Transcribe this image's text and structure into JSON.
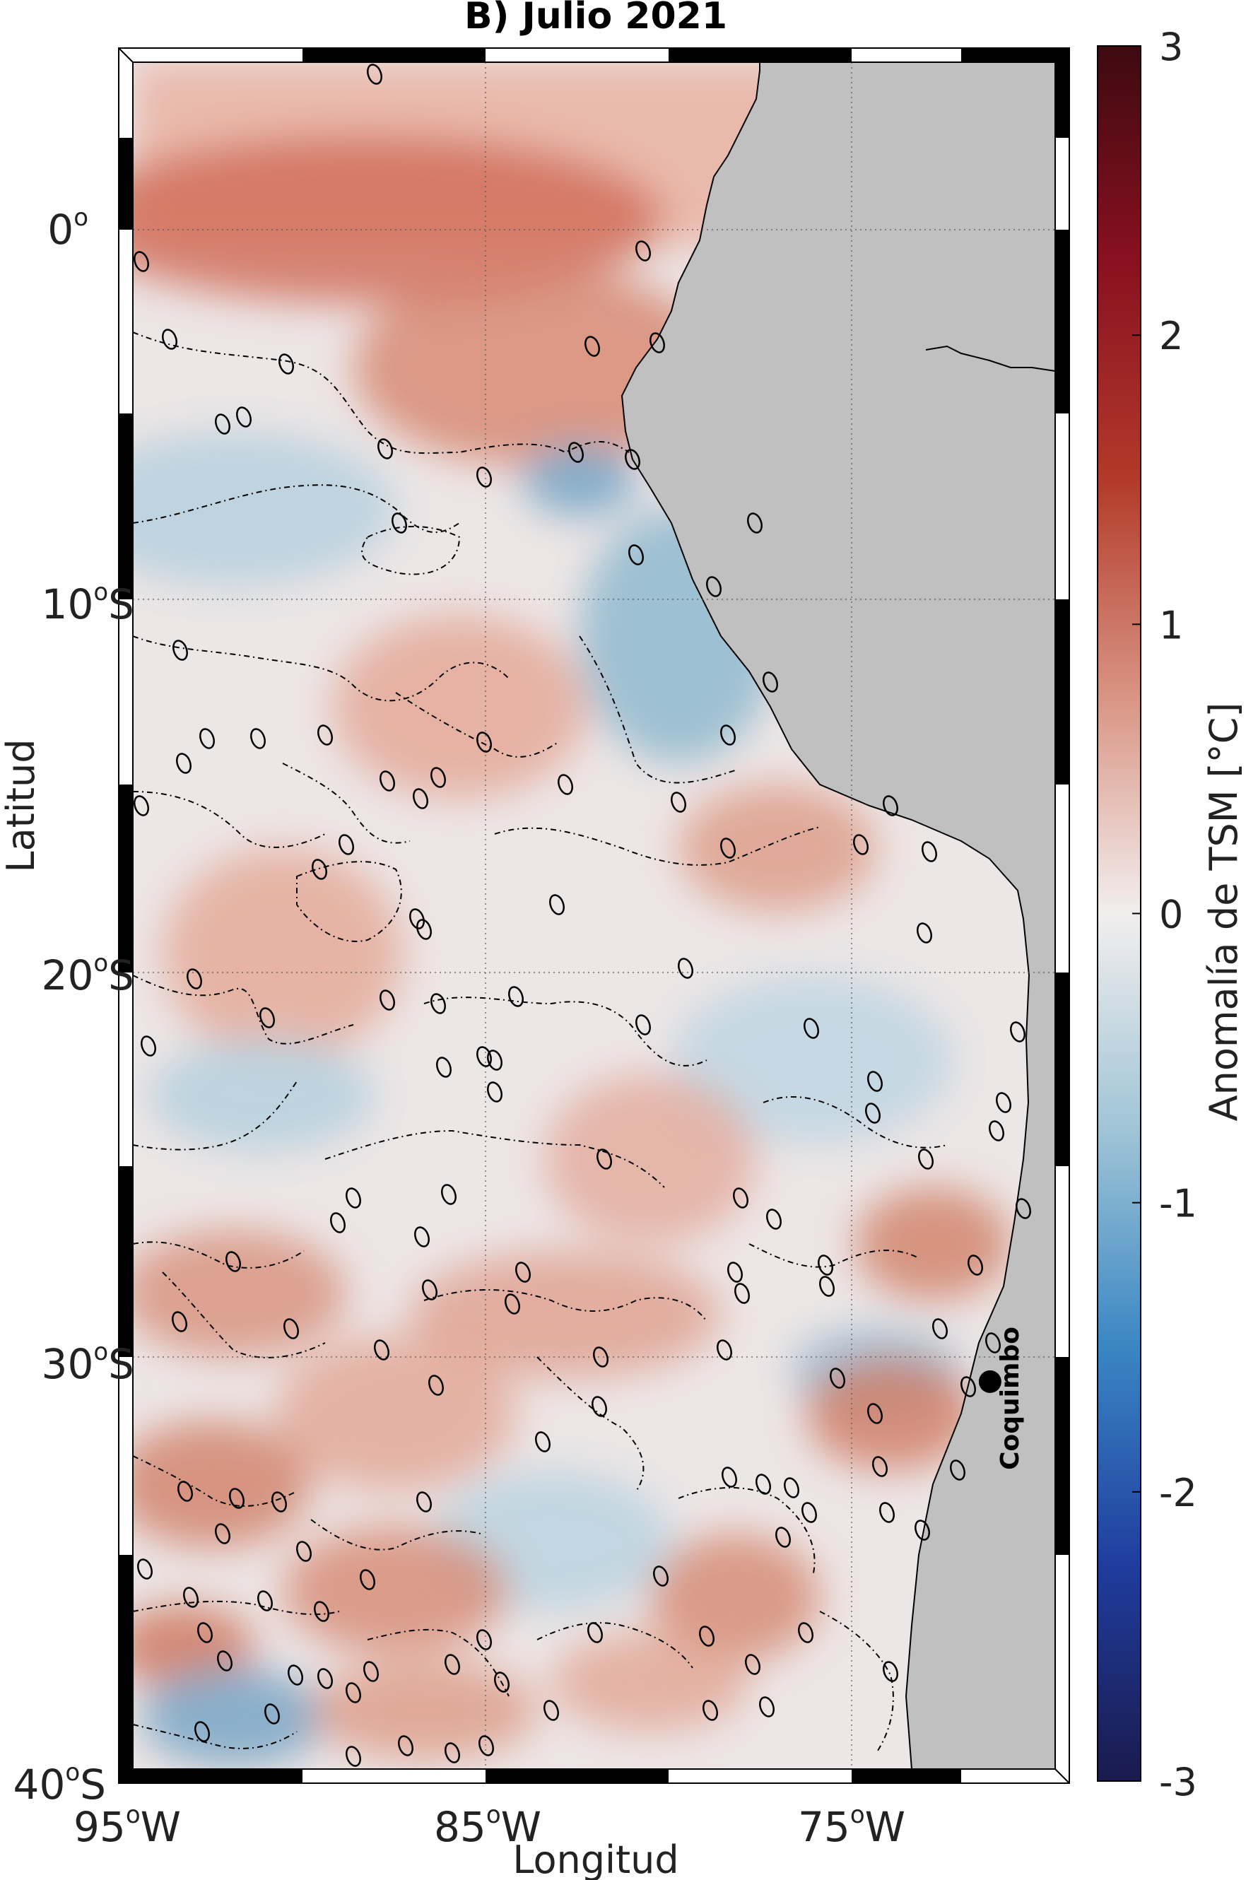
{
  "title": "B) Julio 2021",
  "axes": {
    "x_label": "Longitud",
    "y_label": "Latitud",
    "x_ticks": [
      {
        "deg": "95",
        "suffix": "W"
      },
      {
        "deg": "85",
        "suffix": "W"
      },
      {
        "deg": "75",
        "suffix": "W"
      }
    ],
    "y_ticks": [
      {
        "deg": "0",
        "suffix": ""
      },
      {
        "deg": "10",
        "suffix": "S"
      },
      {
        "deg": "20",
        "suffix": "S"
      },
      {
        "deg": "30",
        "suffix": "S"
      },
      {
        "deg": "40",
        "suffix": "S"
      }
    ],
    "lon_range": [
      -95,
      -69.5
    ],
    "lat_range": [
      -40,
      4.5
    ]
  },
  "colorbar": {
    "label": "Anomalía de TSM [°C]",
    "min": -3,
    "max": 3,
    "ticks": [
      "3",
      "2",
      "1",
      "0",
      "-1",
      "-2",
      "-3"
    ],
    "colors": [
      "#1a1a4d",
      "#1f3d9e",
      "#3a86c3",
      "#9fc4d6",
      "#f2eeee",
      "#d99483",
      "#b23a2a",
      "#8a1020",
      "#3d0a10"
    ]
  },
  "marker": {
    "name": "Coquimbo",
    "lon": -71.3,
    "lat": -29.9
  },
  "contour_label": "0",
  "land_color": "#c0c0c0",
  "warm_color": "#cf6a55",
  "cool_color": "#8fb8cf"
}
